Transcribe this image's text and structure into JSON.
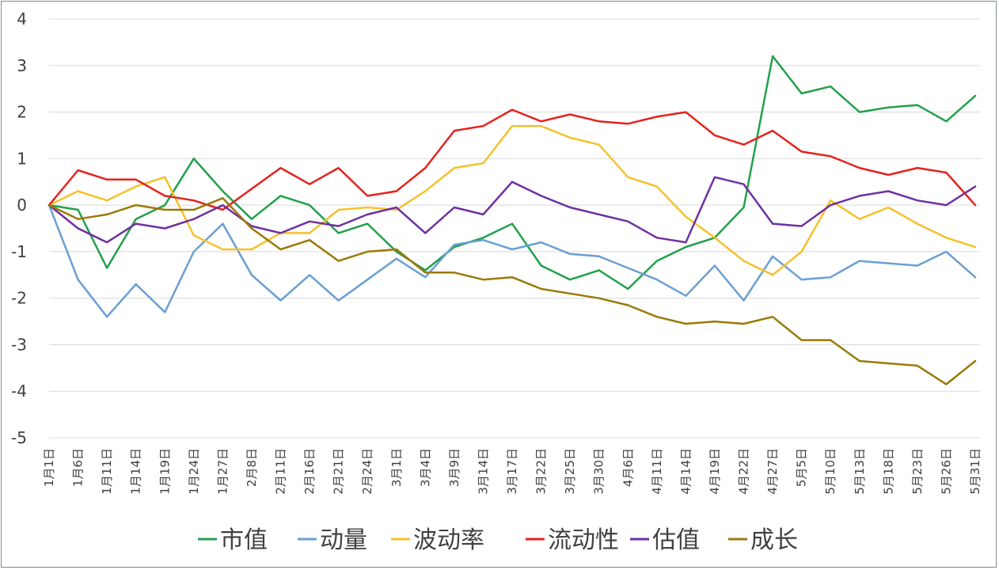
{
  "chart_data": {
    "type": "line",
    "title": "",
    "xlabel": "",
    "ylabel": "",
    "ylim": [
      -5,
      4
    ],
    "yticks": [
      4,
      3,
      2,
      1,
      0,
      -1,
      -2,
      -3,
      -4,
      -5
    ],
    "grid": "horizontal",
    "legend_position": "bottom",
    "x": [
      "1月1日",
      "1月6日",
      "1月11日",
      "1月14日",
      "1月19日",
      "1月24日",
      "1月27日",
      "2月8日",
      "2月11日",
      "2月16日",
      "2月21日",
      "2月24日",
      "3月1日",
      "3月4日",
      "3月9日",
      "3月14日",
      "3月17日",
      "3月22日",
      "3月25日",
      "3月30日",
      "4月6日",
      "4月11日",
      "4月14日",
      "4月19日",
      "4月22日",
      "4月27日",
      "5月5日",
      "5月10日",
      "5月13日",
      "5月18日",
      "5月23日",
      "5月26日",
      "5月31日"
    ],
    "series": [
      {
        "name": "市值",
        "color": "#21a04b",
        "values": [
          0,
          -0.1,
          -1.35,
          -0.3,
          0.0,
          1.0,
          0.3,
          -0.3,
          0.2,
          0.0,
          -0.6,
          -0.4,
          -1.0,
          -1.4,
          -0.9,
          -0.7,
          -0.4,
          -1.3,
          -1.6,
          -1.4,
          -1.8,
          -1.2,
          -0.9,
          -0.7,
          -0.05,
          3.2,
          2.4,
          2.55,
          2.0,
          2.1,
          2.15,
          1.8,
          2.35
        ]
      },
      {
        "name": "动量",
        "color": "#6a9fd2",
        "values": [
          0,
          -1.6,
          -2.4,
          -1.7,
          -2.3,
          -1.0,
          -0.4,
          -1.5,
          -2.05,
          -1.5,
          -2.05,
          -1.6,
          -1.15,
          -1.55,
          -0.85,
          -0.75,
          -0.95,
          -0.8,
          -1.05,
          -1.1,
          -1.35,
          -1.6,
          -1.95,
          -1.3,
          -2.05,
          -1.1,
          -1.6,
          -1.55,
          -1.2,
          -1.25,
          -1.3,
          -1.0,
          -1.55
        ]
      },
      {
        "name": "波动率",
        "color": "#f6c12c",
        "values": [
          0,
          0.3,
          0.1,
          0.4,
          0.6,
          -0.65,
          -0.95,
          -0.95,
          -0.6,
          -0.6,
          -0.1,
          -0.05,
          -0.1,
          0.3,
          0.8,
          0.9,
          1.7,
          1.7,
          1.45,
          1.3,
          0.6,
          0.4,
          -0.25,
          -0.7,
          -1.2,
          -1.5,
          -1.0,
          0.1,
          -0.3,
          -0.05,
          -0.4,
          -0.7,
          -0.9
        ]
      },
      {
        "name": "流动性",
        "color": "#e4231e",
        "values": [
          0,
          0.75,
          0.55,
          0.55,
          0.2,
          0.1,
          -0.1,
          0.35,
          0.8,
          0.45,
          0.8,
          0.2,
          0.3,
          0.8,
          1.6,
          1.7,
          2.05,
          1.8,
          1.95,
          1.8,
          1.75,
          1.9,
          2.0,
          1.5,
          1.3,
          1.6,
          1.15,
          1.05,
          0.8,
          0.65,
          0.8,
          0.7,
          0.0
        ]
      },
      {
        "name": "估值",
        "color": "#7030a0",
        "values": [
          0,
          -0.5,
          -0.8,
          -0.4,
          -0.5,
          -0.3,
          0.0,
          -0.45,
          -0.6,
          -0.35,
          -0.45,
          -0.2,
          -0.05,
          -0.6,
          -0.05,
          -0.2,
          0.5,
          0.2,
          -0.05,
          -0.2,
          -0.35,
          -0.7,
          -0.8,
          0.6,
          0.45,
          -0.4,
          -0.45,
          0.0,
          0.2,
          0.3,
          0.1,
          0.0,
          0.4
        ]
      },
      {
        "name": "成长",
        "color": "#9a7a07",
        "values": [
          0,
          -0.3,
          -0.2,
          0.0,
          -0.1,
          -0.1,
          0.15,
          -0.5,
          -0.95,
          -0.75,
          -1.2,
          -1.0,
          -0.95,
          -1.45,
          -1.45,
          -1.6,
          -1.55,
          -1.8,
          -1.9,
          -2.0,
          -2.15,
          -2.4,
          -2.55,
          -2.5,
          -2.55,
          -2.4,
          -2.9,
          -2.9,
          -3.35,
          -3.4,
          -3.45,
          -3.85,
          -3.35
        ]
      }
    ]
  }
}
